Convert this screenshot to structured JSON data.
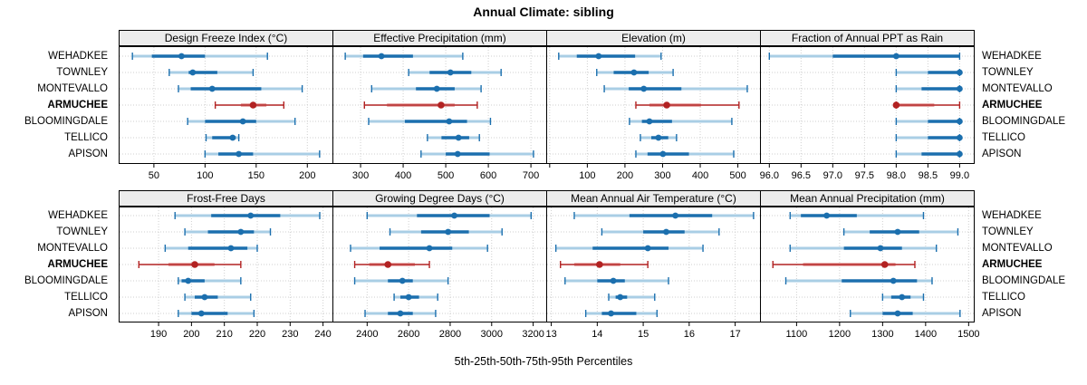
{
  "title": "Annual Climate: sibling",
  "caption": "5th-25th-50th-75th-95th Percentiles",
  "sites": [
    "WEHADKEE",
    "TOWNLEY",
    "MONTEVALLO",
    "ARMUCHEE",
    "BLOOMINGDALE",
    "TELLICO",
    "APISON"
  ],
  "highlighted_site": "ARMUCHEE",
  "percentile_labels": [
    "5th",
    "25th",
    "50th",
    "75th",
    "95th"
  ],
  "colors": {
    "blue_dark": "#1b6fae",
    "blue_light": "#a9cee5",
    "red_dark": "#b22222",
    "red_light": "#e9abaa",
    "grid": "#cfcfcf",
    "strip_bg": "#ececec",
    "border": "#000000"
  },
  "chart_data": [
    {
      "type": "dotplot-percentiles",
      "row": 0,
      "col": 0,
      "title": "Design Freeze Index (°C)",
      "xlim": [
        16,
        225
      ],
      "ticks": [
        50,
        100,
        150,
        200
      ],
      "tick_labels": [
        "50",
        "100",
        "150",
        "200"
      ],
      "values": {
        "WEHADKEE": [
          29,
          48,
          77,
          100,
          161
        ],
        "TOWNLEY": [
          65,
          84,
          88,
          112,
          147
        ],
        "MONTEVALLO": [
          74,
          86,
          107,
          155,
          195
        ],
        "ARMUCHEE": [
          110,
          135,
          147,
          160,
          177
        ],
        "BLOOMINGDALE": [
          83,
          100,
          137,
          150,
          188
        ],
        "TELLICO": [
          101,
          107,
          127,
          130,
          133
        ],
        "APISON": [
          100,
          113,
          133,
          147,
          212
        ]
      }
    },
    {
      "type": "dotplot-percentiles",
      "row": 0,
      "col": 1,
      "title": "Effective Precipitation (mm)",
      "xlim": [
        235,
        737
      ],
      "ticks": [
        300,
        400,
        500,
        600,
        700
      ],
      "tick_labels": [
        "300",
        "400",
        "500",
        "600",
        "700"
      ],
      "values": {
        "WEHADKEE": [
          264,
          306,
          349,
          423,
          540
        ],
        "TOWNLEY": [
          413,
          462,
          511,
          560,
          630
        ],
        "MONTEVALLO": [
          326,
          430,
          479,
          521,
          583
        ],
        "ARMUCHEE": [
          309,
          362,
          489,
          521,
          574
        ],
        "BLOOMINGDALE": [
          319,
          404,
          508,
          550,
          605
        ],
        "TELLICO": [
          457,
          490,
          530,
          555,
          579
        ],
        "APISON": [
          442,
          500,
          528,
          603,
          706
        ]
      }
    },
    {
      "type": "dotplot-percentiles",
      "row": 0,
      "col": 2,
      "title": "Elevation (m)",
      "xlim": [
        -8,
        560
      ],
      "ticks": [
        0,
        100,
        200,
        300,
        400,
        500
      ],
      "tick_labels": [
        "",
        "100",
        "200",
        "300",
        "400",
        "500"
      ],
      "values": {
        "WEHADKEE": [
          24,
          72,
          130,
          227,
          296
        ],
        "TOWNLEY": [
          125,
          170,
          224,
          263,
          328
        ],
        "MONTEVALLO": [
          145,
          210,
          250,
          350,
          525
        ],
        "ARMUCHEE": [
          229,
          265,
          311,
          402,
          503
        ],
        "BLOOMINGDALE": [
          212,
          245,
          265,
          325,
          484
        ],
        "TELLICO": [
          241,
          270,
          289,
          315,
          337
        ],
        "APISON": [
          229,
          260,
          301,
          370,
          489
        ]
      }
    },
    {
      "type": "dotplot-percentiles",
      "row": 0,
      "col": 3,
      "title": "Fraction of Annual PPT as Rain",
      "xlim": [
        95.86,
        99.23
      ],
      "ticks": [
        96.0,
        96.5,
        97.0,
        97.5,
        98.0,
        98.5,
        99.0
      ],
      "tick_labels": [
        "96.0",
        "96.5",
        "97.0",
        "97.5",
        "98.0",
        "98.5",
        "99.0"
      ],
      "values": {
        "WEHADKEE": [
          96.0,
          97.0,
          98.0,
          99.0,
          99.0
        ],
        "TOWNLEY": [
          98.0,
          98.5,
          99.0,
          99.0,
          99.0
        ],
        "MONTEVALLO": [
          98.0,
          98.4,
          99.0,
          99.0,
          99.0
        ],
        "ARMUCHEE": [
          98.0,
          98.0,
          98.0,
          98.6,
          99.0
        ],
        "BLOOMINGDALE": [
          98.0,
          98.5,
          99.0,
          99.0,
          99.0
        ],
        "TELLICO": [
          98.0,
          98.5,
          99.0,
          99.0,
          99.0
        ],
        "APISON": [
          98.0,
          98.4,
          99.0,
          99.0,
          99.0
        ]
      }
    },
    {
      "type": "dotplot-percentiles",
      "row": 1,
      "col": 0,
      "title": "Frost-Free Days",
      "xlim": [
        178,
        243
      ],
      "ticks": [
        190,
        200,
        210,
        220,
        230,
        240
      ],
      "tick_labels": [
        "190",
        "200",
        "210",
        "220",
        "230",
        "240"
      ],
      "values": {
        "WEHADKEE": [
          195,
          206,
          218,
          227,
          239
        ],
        "TOWNLEY": [
          198,
          205,
          215,
          219,
          224
        ],
        "MONTEVALLO": [
          192,
          199,
          212,
          217,
          220
        ],
        "ARMUCHEE": [
          184,
          193,
          201,
          207,
          215
        ],
        "BLOOMINGDALE": [
          196,
          197,
          199,
          204,
          215
        ],
        "TELLICO": [
          198,
          201,
          204,
          208,
          218
        ],
        "APISON": [
          196,
          200,
          203,
          211,
          219
        ]
      }
    },
    {
      "type": "dotplot-percentiles",
      "row": 1,
      "col": 1,
      "title": "Growing Degree Days (°C)",
      "xlim": [
        2235,
        3265
      ],
      "ticks": [
        2400,
        2600,
        2800,
        3000,
        3200
      ],
      "tick_labels": [
        "2400",
        "2600",
        "2800",
        "3000",
        "3200"
      ],
      "values": {
        "WEHADKEE": [
          2400,
          2640,
          2820,
          2990,
          3190
        ],
        "TOWNLEY": [
          2510,
          2660,
          2790,
          2890,
          3050
        ],
        "MONTEVALLO": [
          2320,
          2460,
          2700,
          2810,
          2980
        ],
        "ARMUCHEE": [
          2340,
          2410,
          2500,
          2630,
          2700
        ],
        "BLOOMINGDALE": [
          2340,
          2500,
          2570,
          2620,
          2790
        ],
        "TELLICO": [
          2530,
          2560,
          2600,
          2650,
          2740
        ],
        "APISON": [
          2390,
          2500,
          2560,
          2620,
          2730
        ]
      }
    },
    {
      "type": "dotplot-percentiles",
      "row": 1,
      "col": 2,
      "title": "Mean Annual Air Temperature (°C)",
      "xlim": [
        12.9,
        17.55
      ],
      "ticks": [
        13,
        14,
        15,
        16,
        17
      ],
      "tick_labels": [
        "13",
        "14",
        "15",
        "16",
        "17"
      ],
      "values": {
        "WEHADKEE": [
          13.5,
          14.7,
          15.7,
          16.5,
          17.4
        ],
        "TOWNLEY": [
          14.1,
          15.0,
          15.5,
          15.9,
          16.65
        ],
        "MONTEVALLO": [
          13.1,
          13.9,
          15.1,
          15.55,
          16.3
        ],
        "ARMUCHEE": [
          13.2,
          13.5,
          14.05,
          14.5,
          15.1
        ],
        "BLOOMINGDALE": [
          13.3,
          14.0,
          14.35,
          14.6,
          15.55
        ],
        "TELLICO": [
          14.25,
          14.4,
          14.5,
          14.65,
          15.25
        ],
        "APISON": [
          13.75,
          14.1,
          14.3,
          14.85,
          15.3
        ]
      }
    },
    {
      "type": "dotplot-percentiles",
      "row": 1,
      "col": 3,
      "title": "Mean Annual Precipitation (mm)",
      "xlim": [
        1016,
        1513
      ],
      "ticks": [
        1100,
        1200,
        1300,
        1400,
        1500
      ],
      "tick_labels": [
        "1100",
        "1200",
        "1300",
        "1400",
        "1500"
      ],
      "values": {
        "WEHADKEE": [
          1085,
          1110,
          1170,
          1240,
          1395
        ],
        "TOWNLEY": [
          1210,
          1270,
          1335,
          1385,
          1475
        ],
        "MONTEVALLO": [
          1085,
          1210,
          1295,
          1345,
          1425
        ],
        "ARMUCHEE": [
          1045,
          1115,
          1305,
          1330,
          1375
        ],
        "BLOOMINGDALE": [
          1075,
          1205,
          1325,
          1380,
          1415
        ],
        "TELLICO": [
          1300,
          1320,
          1345,
          1365,
          1395
        ],
        "APISON": [
          1225,
          1300,
          1335,
          1370,
          1480
        ]
      }
    }
  ]
}
